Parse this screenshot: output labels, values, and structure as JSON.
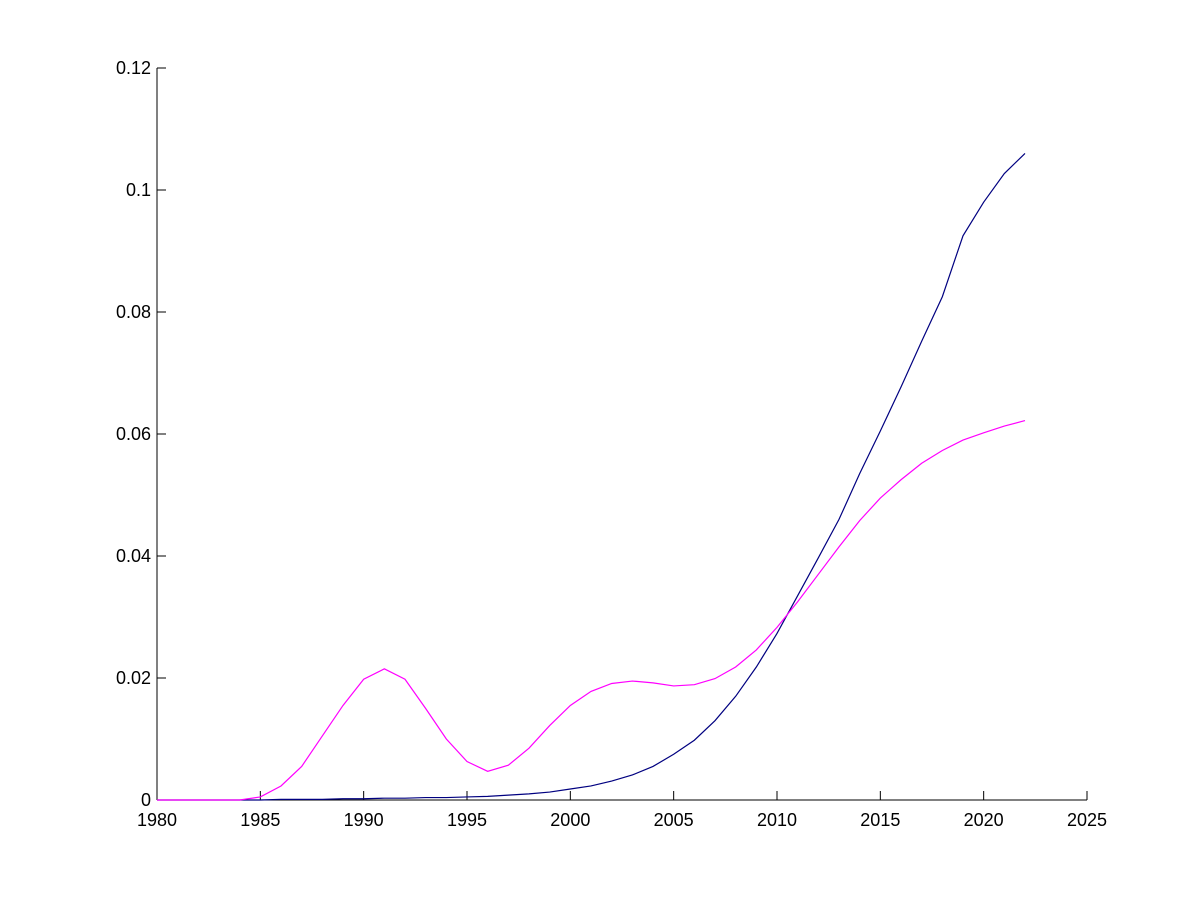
{
  "chart_data": {
    "type": "line",
    "x": [
      1980,
      1981,
      1982,
      1983,
      1984,
      1985,
      1986,
      1987,
      1988,
      1989,
      1990,
      1991,
      1992,
      1993,
      1994,
      1995,
      1996,
      1997,
      1998,
      1999,
      2000,
      2001,
      2002,
      2003,
      2004,
      2005,
      2006,
      2007,
      2008,
      2009,
      2010,
      2011,
      2012,
      2013,
      2014,
      2015,
      2016,
      2017,
      2018,
      2019,
      2020,
      2021,
      2022
    ],
    "series": [
      {
        "color": "#000080",
        "values": [
          0,
          0,
          0,
          0,
          0,
          0,
          0.0001,
          0.0001,
          0.0001,
          0.0002,
          0.0002,
          0.0003,
          0.0003,
          0.0004,
          0.0004,
          0.0005,
          0.0006,
          0.0008,
          0.001,
          0.0013,
          0.0018,
          0.0023,
          0.0031,
          0.0041,
          0.0055,
          0.0075,
          0.0098,
          0.013,
          0.017,
          0.0218,
          0.0273,
          0.0335,
          0.0397,
          0.046,
          0.0535,
          0.0605,
          0.0677,
          0.0752,
          0.0825,
          0.0925,
          0.098,
          0.1027,
          0.106
        ]
      },
      {
        "color": "#ff00ff",
        "values": [
          0,
          0,
          0,
          0,
          0,
          0.0005,
          0.0023,
          0.0055,
          0.0105,
          0.0155,
          0.0198,
          0.0215,
          0.0198,
          0.015,
          0.01,
          0.0063,
          0.0047,
          0.0057,
          0.0085,
          0.0122,
          0.0155,
          0.0178,
          0.0191,
          0.0195,
          0.0192,
          0.0187,
          0.0189,
          0.0199,
          0.0218,
          0.0246,
          0.0283,
          0.0325,
          0.037,
          0.0415,
          0.0458,
          0.0495,
          0.0525,
          0.0552,
          0.0573,
          0.059,
          0.0602,
          0.0613,
          0.0622
        ]
      }
    ],
    "xlim": [
      1980,
      2025
    ],
    "xticks": [
      1980,
      1985,
      1990,
      1995,
      2000,
      2005,
      2010,
      2015,
      2020,
      2025
    ],
    "ylim": [
      0,
      0.12
    ],
    "yticks": [
      0,
      0.02,
      0.04,
      0.06,
      0.08,
      0.1,
      0.12
    ]
  }
}
